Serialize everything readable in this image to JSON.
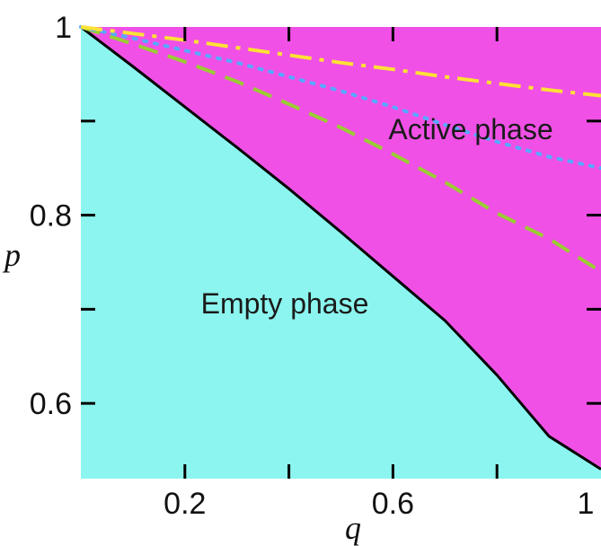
{
  "chart_data": {
    "type": "area",
    "xlabel": "q",
    "ylabel": "p",
    "xlim": [
      0,
      1
    ],
    "ylim": [
      0.52,
      1
    ],
    "xticks": [
      0,
      0.2,
      0.4,
      0.6,
      0.8,
      1
    ],
    "xtick_labels": [
      "",
      "0.2",
      "",
      "0.6",
      "",
      "1"
    ],
    "yticks": [
      0.6,
      0.7,
      0.8,
      0.9,
      1
    ],
    "ytick_labels": [
      "0.6",
      "",
      "0.8",
      "",
      "1"
    ],
    "grid": false,
    "regions": [
      {
        "label": "Empty phase",
        "color": "#8cf5ef",
        "x": 0.25,
        "y": 0.7
      },
      {
        "label": "Active phase",
        "color": "#f050e6",
        "x": 0.75,
        "y": 0.905
      }
    ],
    "series": [
      {
        "style": "solid",
        "color": "#000000",
        "x": [
          0,
          0.1,
          0.2,
          0.3,
          0.4,
          0.5,
          0.6,
          0.7,
          0.8,
          0.9,
          1.0
        ],
        "y": [
          1.0,
          0.958,
          0.915,
          0.872,
          0.828,
          0.782,
          0.735,
          0.688,
          0.63,
          0.565,
          0.53
        ]
      },
      {
        "style": "dashed",
        "color": "#9acd32",
        "x": [
          0,
          0.1,
          0.2,
          0.3,
          0.4,
          0.5,
          0.6,
          0.7,
          0.8,
          0.9,
          1.0
        ],
        "y": [
          1.0,
          0.982,
          0.963,
          0.942,
          0.918,
          0.893,
          0.865,
          0.835,
          0.802,
          0.775,
          0.74
        ]
      },
      {
        "style": "dotted",
        "color": "#55aaff",
        "x": [
          0,
          0.1,
          0.2,
          0.3,
          0.4,
          0.5,
          0.6,
          0.7,
          0.8,
          0.9,
          1.0
        ],
        "y": [
          1.0,
          0.988,
          0.975,
          0.962,
          0.947,
          0.932,
          0.915,
          0.896,
          0.878,
          0.862,
          0.85
        ]
      },
      {
        "style": "dashdot",
        "color": "#ffe135",
        "x": [
          0,
          0.1,
          0.2,
          0.3,
          0.4,
          0.5,
          0.6,
          0.7,
          0.8,
          0.9,
          1.0
        ],
        "y": [
          1.0,
          0.993,
          0.986,
          0.978,
          0.97,
          0.962,
          0.955,
          0.947,
          0.94,
          0.933,
          0.927
        ]
      }
    ]
  }
}
